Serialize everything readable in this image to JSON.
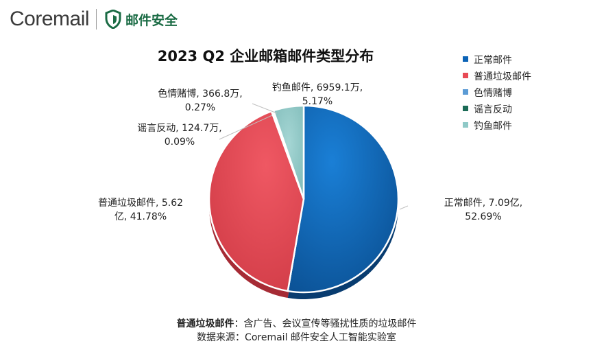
{
  "brand": {
    "name": "Coremail",
    "product": "邮件安全",
    "shield_color": "#1a6b44"
  },
  "chart_data": {
    "type": "pie",
    "title": "2023 Q2 企业邮箱邮件类型分布",
    "slices": [
      {
        "name": "正常邮件",
        "value_text": "7.09亿",
        "percent": 52.69,
        "color": "#0b63b6"
      },
      {
        "name": "普通垃圾邮件",
        "value_text": "5.62亿",
        "percent": 41.78,
        "color": "#e84a55"
      },
      {
        "name": "色情赌博",
        "value_text": "366.8万",
        "percent": 0.27,
        "color": "#5b9bd5"
      },
      {
        "name": "谣言反动",
        "value_text": "124.7万",
        "percent": 0.09,
        "color": "#1b6b56"
      },
      {
        "name": "钓鱼邮件",
        "value_text": "6959.1万",
        "percent": 5.17,
        "color": "#8fc9c7"
      }
    ],
    "data_labels": [
      {
        "line1": "正常邮件, 7.09亿,",
        "line2": "52.69%"
      },
      {
        "line1": "普通垃圾邮件, 5.62",
        "line2": "亿, 41.78%"
      },
      {
        "line1": "色情赌博, 366.8万,",
        "line2": "0.27%"
      },
      {
        "line1": "谣言反动, 124.7万,",
        "line2": "0.09%"
      },
      {
        "line1": "钓鱼邮件, 6959.1万,",
        "line2": "5.17%"
      }
    ],
    "legend_position": "right"
  },
  "footnote": {
    "term": "普通垃圾邮件",
    "definition": "：含广告、会议宣传等骚扰性质的垃圾邮件",
    "source": "数据来源：Coremail 邮件安全人工智能实验室"
  }
}
